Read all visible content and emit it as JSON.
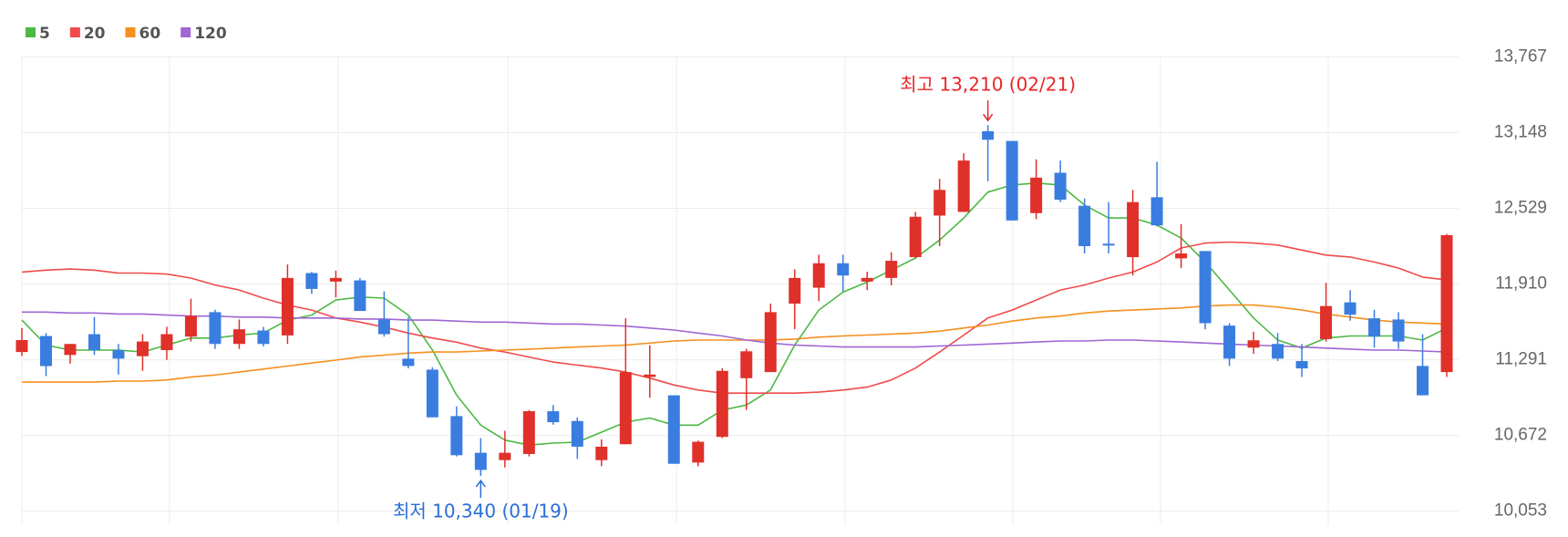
{
  "chart_data": {
    "type": "candlestick",
    "open": [
      11354,
      11485,
      11330,
      11500,
      11370,
      11320,
      11370,
      11480,
      11680,
      11420,
      11530,
      11490,
      12000,
      11930,
      11940,
      11620,
      11300,
      11210,
      10830,
      10530,
      10470,
      10520,
      10870,
      10790,
      10470,
      10600,
      11150,
      11000,
      10450,
      10660,
      11140,
      11190,
      11750,
      11880,
      12080,
      11930,
      11960,
      12130,
      12470,
      12500,
      13160,
      13080,
      12490,
      12820,
      12550,
      12240,
      12130,
      12620,
      12120,
      12180,
      11570,
      11390,
      11420,
      11280,
      11460,
      11760,
      11630,
      11620,
      11240,
      11190
    ],
    "high": [
      11550,
      11509,
      11420,
      11640,
      11420,
      11500,
      11560,
      11790,
      11700,
      11620,
      11560,
      12070,
      12010,
      12020,
      11960,
      11850,
      11640,
      11230,
      10910,
      10650,
      10710,
      10880,
      10920,
      10820,
      10640,
      11630,
      11410,
      11000,
      10630,
      11220,
      11380,
      11750,
      12030,
      12150,
      12150,
      12010,
      12170,
      12500,
      12770,
      12980,
      13210,
      13080,
      12930,
      12920,
      12610,
      12580,
      12680,
      12910,
      12400,
      12180,
      11590,
      11520,
      11510,
      11420,
      11920,
      11860,
      11700,
      11680,
      11500,
      12320
    ],
    "low": [
      11321,
      11157,
      11260,
      11330,
      11170,
      11200,
      11290,
      11440,
      11380,
      11380,
      11400,
      11420,
      11830,
      11800,
      11690,
      11480,
      11220,
      10820,
      10500,
      10340,
      10410,
      10500,
      10760,
      10480,
      10420,
      10600,
      10980,
      10440,
      10420,
      10650,
      10880,
      11190,
      11540,
      11770,
      11850,
      11860,
      11900,
      12120,
      12220,
      12500,
      12750,
      12430,
      12440,
      12580,
      12160,
      12160,
      11980,
      12380,
      12040,
      11540,
      11240,
      11340,
      11280,
      11150,
      11440,
      11610,
      11390,
      11380,
      11000,
      11150
    ],
    "close": [
      11452,
      11239,
      11420,
      11370,
      11300,
      11440,
      11500,
      11650,
      11420,
      11540,
      11420,
      11960,
      11870,
      11960,
      11690,
      11500,
      11240,
      10820,
      10510,
      10390,
      10530,
      10870,
      10780,
      10580,
      10580,
      11190,
      11170,
      10440,
      10620,
      11200,
      11360,
      11680,
      11960,
      12080,
      11980,
      11960,
      12100,
      12460,
      12680,
      12920,
      13090,
      12430,
      12780,
      12600,
      12220,
      12230,
      12580,
      12390,
      12160,
      11590,
      11300,
      11450,
      11300,
      11220,
      11730,
      11660,
      11480,
      11440,
      11000,
      12310
    ],
    "up_color": "#e0302a",
    "down_color": "#3a7de0",
    "series": [
      {
        "name": "5",
        "color": "#4cb944",
        "values": [
          11615,
          11411,
          11370,
          11370,
          11370,
          11354,
          11411,
          11468,
          11468,
          11493,
          11509,
          11615,
          11656,
          11779,
          11804,
          11795,
          11656,
          11370,
          11002,
          10756,
          10634,
          10593,
          10609,
          10617,
          10699,
          10781,
          10814,
          10756,
          10756,
          10879,
          10920,
          11043,
          11411,
          11697,
          11844,
          11926,
          12024,
          12123,
          12270,
          12450,
          12662,
          12720,
          12736,
          12720,
          12556,
          12450,
          12450,
          12393,
          12286,
          12090,
          11861,
          11632,
          11452,
          11386,
          11468,
          11485,
          11485,
          11485,
          11452,
          11550
        ]
      },
      {
        "name": "20",
        "color": "#f04b4b",
        "values": [
          12008,
          12024,
          12033,
          12024,
          12000,
          12000,
          11992,
          11959,
          11902,
          11861,
          11795,
          11738,
          11697,
          11632,
          11599,
          11558,
          11509,
          11468,
          11435,
          11386,
          11354,
          11313,
          11272,
          11247,
          11223,
          11190,
          11141,
          11084,
          11043,
          11018,
          11018,
          11018,
          11018,
          11026,
          11043,
          11067,
          11125,
          11223,
          11354,
          11493,
          11632,
          11697,
          11779,
          11861,
          11902,
          11959,
          12008,
          12090,
          12205,
          12245,
          12253,
          12245,
          12229,
          12188,
          12147,
          12131,
          12090,
          12041,
          11967,
          11943
        ]
      },
      {
        "name": "60",
        "color": "#f5901e",
        "values": [
          11108,
          11108,
          11108,
          11108,
          11116,
          11116,
          11125,
          11149,
          11166,
          11190,
          11215,
          11239,
          11264,
          11288,
          11313,
          11329,
          11345,
          11354,
          11354,
          11362,
          11370,
          11378,
          11386,
          11395,
          11403,
          11411,
          11427,
          11444,
          11452,
          11452,
          11452,
          11452,
          11460,
          11476,
          11485,
          11493,
          11501,
          11509,
          11525,
          11550,
          11575,
          11607,
          11632,
          11648,
          11673,
          11689,
          11697,
          11706,
          11714,
          11730,
          11738,
          11738,
          11722,
          11697,
          11665,
          11640,
          11615,
          11599,
          11591,
          11583
        ]
      },
      {
        "name": "120",
        "color": "#a066d3",
        "values": [
          11681,
          11681,
          11673,
          11673,
          11665,
          11665,
          11656,
          11648,
          11648,
          11640,
          11640,
          11632,
          11632,
          11632,
          11624,
          11624,
          11615,
          11615,
          11607,
          11599,
          11599,
          11591,
          11583,
          11583,
          11575,
          11566,
          11550,
          11534,
          11509,
          11485,
          11452,
          11427,
          11411,
          11403,
          11395,
          11395,
          11395,
          11395,
          11403,
          11411,
          11419,
          11427,
          11436,
          11444,
          11444,
          11452,
          11452,
          11444,
          11436,
          11427,
          11419,
          11411,
          11403,
          11395,
          11386,
          11378,
          11370,
          11370,
          11362,
          11354
        ]
      }
    ],
    "ylim": [
      10053,
      13767
    ],
    "yticks": [
      {
        "value": 10053,
        "label": "10,053"
      },
      {
        "value": 10672,
        "label": "10,672"
      },
      {
        "value": 11291,
        "label": "11,291"
      },
      {
        "value": 11910,
        "label": "11,910"
      },
      {
        "value": 12529,
        "label": "12,529"
      },
      {
        "value": 13148,
        "label": "13,148"
      },
      {
        "value": 13767,
        "label": "13,767"
      }
    ],
    "grid": true,
    "legend": "top-left",
    "high_label": "최고 13,210 (02/21)",
    "high_color": "#e8262a",
    "low_label": "최저 10,340 (01/19)",
    "low_color": "#2a6ed8"
  }
}
